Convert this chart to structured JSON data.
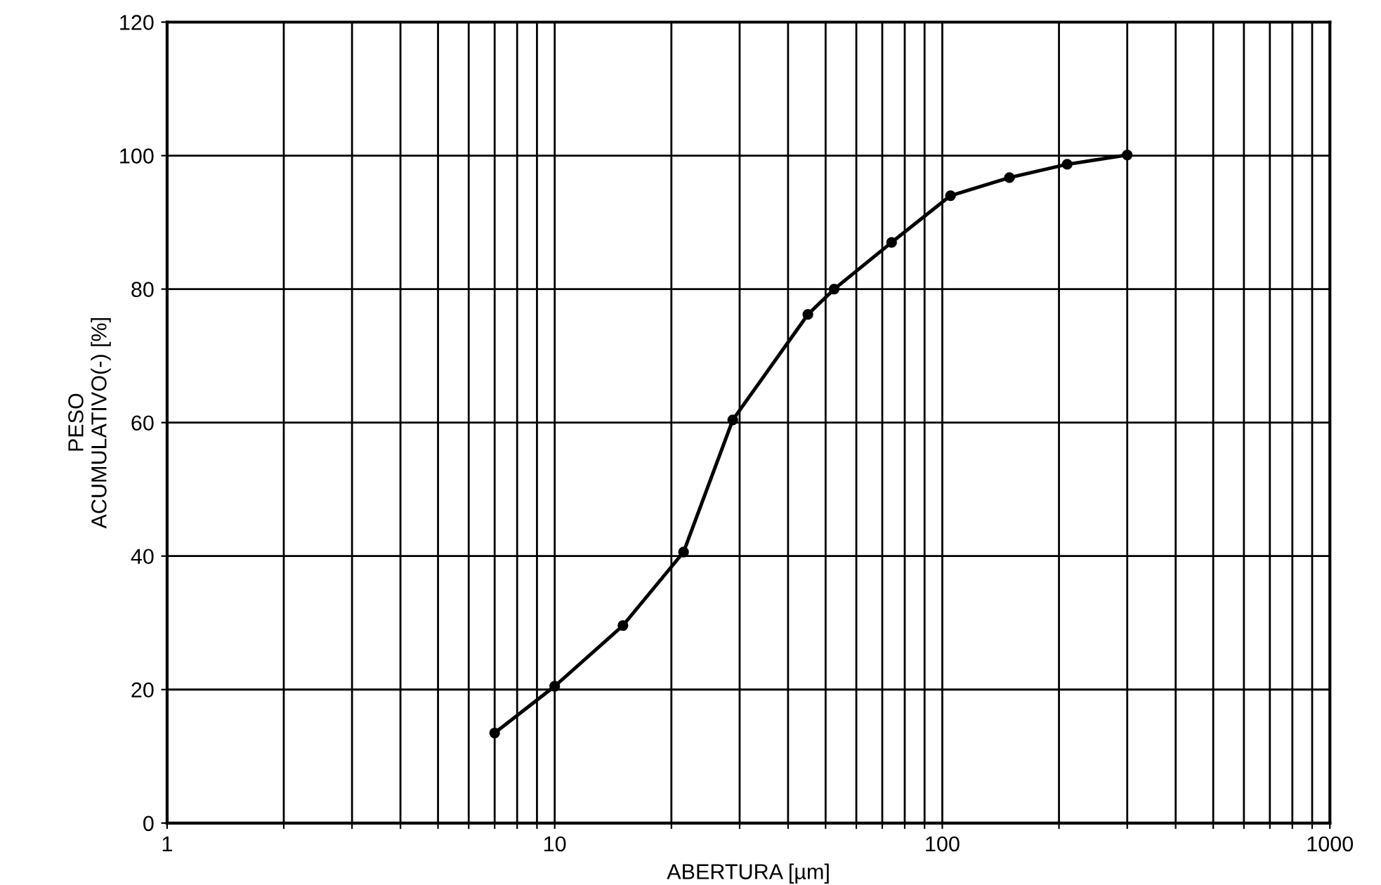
{
  "chart_data": {
    "type": "line",
    "xlabel": "ABERTURA [µm]",
    "ylabel": "PESO\nACUMULATIVO(-) [%]",
    "log": "x",
    "xlim": [
      1,
      1000
    ],
    "ylim": [
      0,
      120
    ],
    "xticks": [
      1,
      {
        "value": 2,
        "label": null
      },
      {
        "value": 3,
        "label": null
      },
      {
        "value": 4,
        "label": null
      },
      {
        "value": 5,
        "label": null
      },
      {
        "value": 6,
        "label": null
      },
      {
        "value": 7,
        "label": null
      },
      {
        "value": 8,
        "label": null
      },
      {
        "value": 9,
        "label": null
      },
      10,
      {
        "value": 20,
        "label": null
      },
      {
        "value": 30,
        "label": null
      },
      {
        "value": 40,
        "label": null
      },
      {
        "value": 50,
        "label": null
      },
      {
        "value": 60,
        "label": null
      },
      {
        "value": 70,
        "label": null
      },
      {
        "value": 80,
        "label": null
      },
      {
        "value": 90,
        "label": null
      },
      100,
      {
        "value": 200,
        "label": null
      },
      {
        "value": 300,
        "label": null
      },
      {
        "value": 400,
        "label": null
      },
      {
        "value": 500,
        "label": null
      },
      {
        "value": 600,
        "label": null
      },
      {
        "value": 700,
        "label": null
      },
      {
        "value": 800,
        "label": null
      },
      {
        "value": 900,
        "label": null
      },
      1000
    ],
    "yticks": [
      0,
      20,
      40,
      60,
      80,
      100,
      120
    ],
    "grid": true,
    "marker": "circle",
    "line_style": "solid",
    "series": [
      {
        "color": "#000000",
        "x": [
          7,
          10,
          15,
          21.5,
          28.8,
          45,
          52.6,
          74,
          105,
          149,
          210,
          300
        ],
        "values": [
          13.5,
          20.5,
          29.6,
          40.6,
          60.4,
          76.2,
          80,
          87,
          94,
          96.7,
          98.7,
          100.1
        ]
      }
    ]
  }
}
